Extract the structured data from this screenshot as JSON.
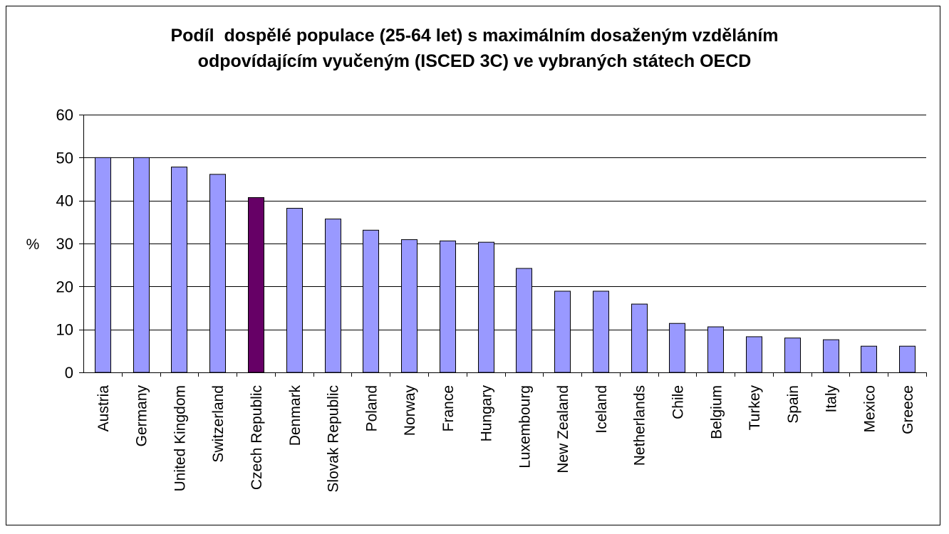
{
  "chart_data": {
    "type": "bar",
    "title_lines": [
      "Podíl  dospělé populace (25-64 let) s maximálním dosaženým vzděláním",
      "odpovídajícím vyučeným (ISCED 3C) ve vybraných státech OECD"
    ],
    "xlabel": "",
    "ylabel": "%",
    "ylim": [
      0,
      60
    ],
    "yticks": [
      0,
      10,
      20,
      30,
      40,
      50,
      60
    ],
    "grid": "horizontal",
    "categories": [
      "Austria",
      "Germany",
      "United Kingdom",
      "Switzerland",
      "Czech Republic",
      "Denmark",
      "Slovak Republic",
      "Poland",
      "Norway",
      "France",
      "Hungary",
      "Luxembourg",
      "New Zealand",
      "Iceland",
      "Netherlands",
      "Chile",
      "Belgium",
      "Turkey",
      "Spain",
      "Italy",
      "Mexico",
      "Greece"
    ],
    "values": [
      50,
      50,
      47.8,
      46.1,
      40.7,
      38.2,
      35.7,
      33.1,
      30.9,
      30.6,
      30.3,
      24.2,
      18.9,
      18.9,
      15.9,
      11.4,
      10.6,
      8.3,
      8.0,
      7.6,
      6.1,
      6.1
    ],
    "colors": {
      "bar": "#9999ff",
      "highlight": "#660066",
      "axis": "#000000",
      "grid": "#000000"
    },
    "highlight_category": "Czech Republic"
  }
}
